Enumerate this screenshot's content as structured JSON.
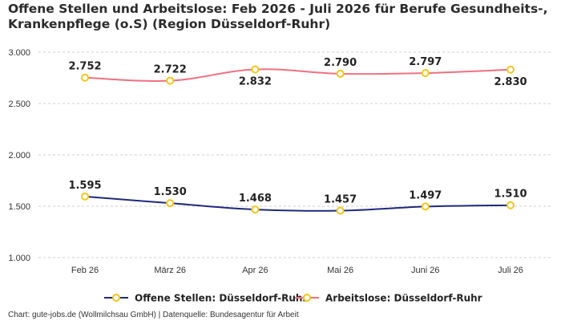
{
  "title": "Offene Stellen und Arbeitslose: Feb 2026 - Juli 2026 für Berufe Gesundheits-, Krankenpflege (o.S) (Region Düsseldorf-Ruhr)",
  "footer": "Chart: gute-jobs.de (Wollmilchsau GmbH) | Datenquelle: Bundesagentur für Arbeit",
  "chart_data": {
    "type": "line",
    "title": "Offene Stellen und Arbeitslose: Feb 2026 - Juli 2026 für Berufe Gesundheits-, Krankenpflege (o.S) (Region Düsseldorf-Ruhr)",
    "categories": [
      "Feb 26",
      "März 26",
      "Apr 26",
      "Mai 26",
      "Juni 26",
      "Juli 26"
    ],
    "ylim": [
      1000,
      3000
    ],
    "yticks": [
      1000,
      1500,
      2000,
      2500,
      3000
    ],
    "ytick_labels": [
      "1.000",
      "1.500",
      "2.000",
      "2.500",
      "3.000"
    ],
    "grid": true,
    "legend_position": "bottom",
    "marker_color": "#f5c518",
    "series": [
      {
        "name": "Offene Stellen: Düsseldorf-Ruhr",
        "color": "#1f2a7a",
        "values": [
          1595,
          1530,
          1468,
          1457,
          1497,
          1510
        ],
        "labels": [
          "1.595",
          "1.530",
          "1.468",
          "1.457",
          "1.497",
          "1.510"
        ],
        "label_side": [
          "above",
          "above",
          "above",
          "above",
          "above",
          "above"
        ]
      },
      {
        "name": "Arbeitslose: Düsseldorf-Ruhr",
        "color": "#f07080",
        "values": [
          2752,
          2722,
          2832,
          2790,
          2797,
          2830
        ],
        "labels": [
          "2.752",
          "2.722",
          "2.832",
          "2.790",
          "2.797",
          "2.830"
        ],
        "label_side": [
          "above",
          "above",
          "below",
          "above",
          "above",
          "below"
        ]
      }
    ]
  }
}
